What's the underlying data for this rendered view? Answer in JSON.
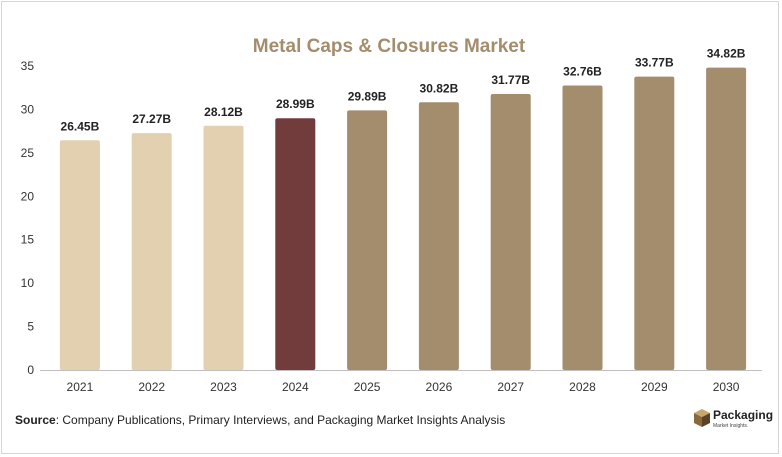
{
  "chart_data": {
    "type": "bar",
    "title": "Metal Caps & Closures Market",
    "xlabel": "",
    "ylabel": "",
    "ylim": [
      0,
      35
    ],
    "yticks": [
      0,
      5,
      10,
      15,
      20,
      25,
      30,
      35
    ],
    "grid": false,
    "legend": "none",
    "categories": [
      "2021",
      "2022",
      "2023",
      "2024",
      "2025",
      "2026",
      "2027",
      "2028",
      "2029",
      "2030"
    ],
    "values": [
      26.45,
      27.27,
      28.12,
      28.99,
      29.89,
      30.82,
      31.77,
      32.76,
      33.77,
      34.82
    ],
    "data_labels": [
      "26.45B",
      "27.27B",
      "28.12B",
      "28.99B",
      "29.89B",
      "30.82B",
      "31.77B",
      "32.76B",
      "33.77B",
      "34.82B"
    ],
    "colors": {
      "historical": "#e3d0b1",
      "base_year": "#733c3c",
      "forecast": "#a38d6d",
      "title": "#a38d6d",
      "axis": "#bfbfbf"
    },
    "bar_groups": [
      "historical",
      "historical",
      "historical",
      "base_year",
      "forecast",
      "forecast",
      "forecast",
      "forecast",
      "forecast",
      "forecast"
    ]
  },
  "source": {
    "label": "Source",
    "text": ": Company Publications, Primary Interviews, and Packaging Market Insights Analysis"
  },
  "logo": {
    "name": "Packaging",
    "tagline": "Market Insights.",
    "icon": "box-icon"
  }
}
